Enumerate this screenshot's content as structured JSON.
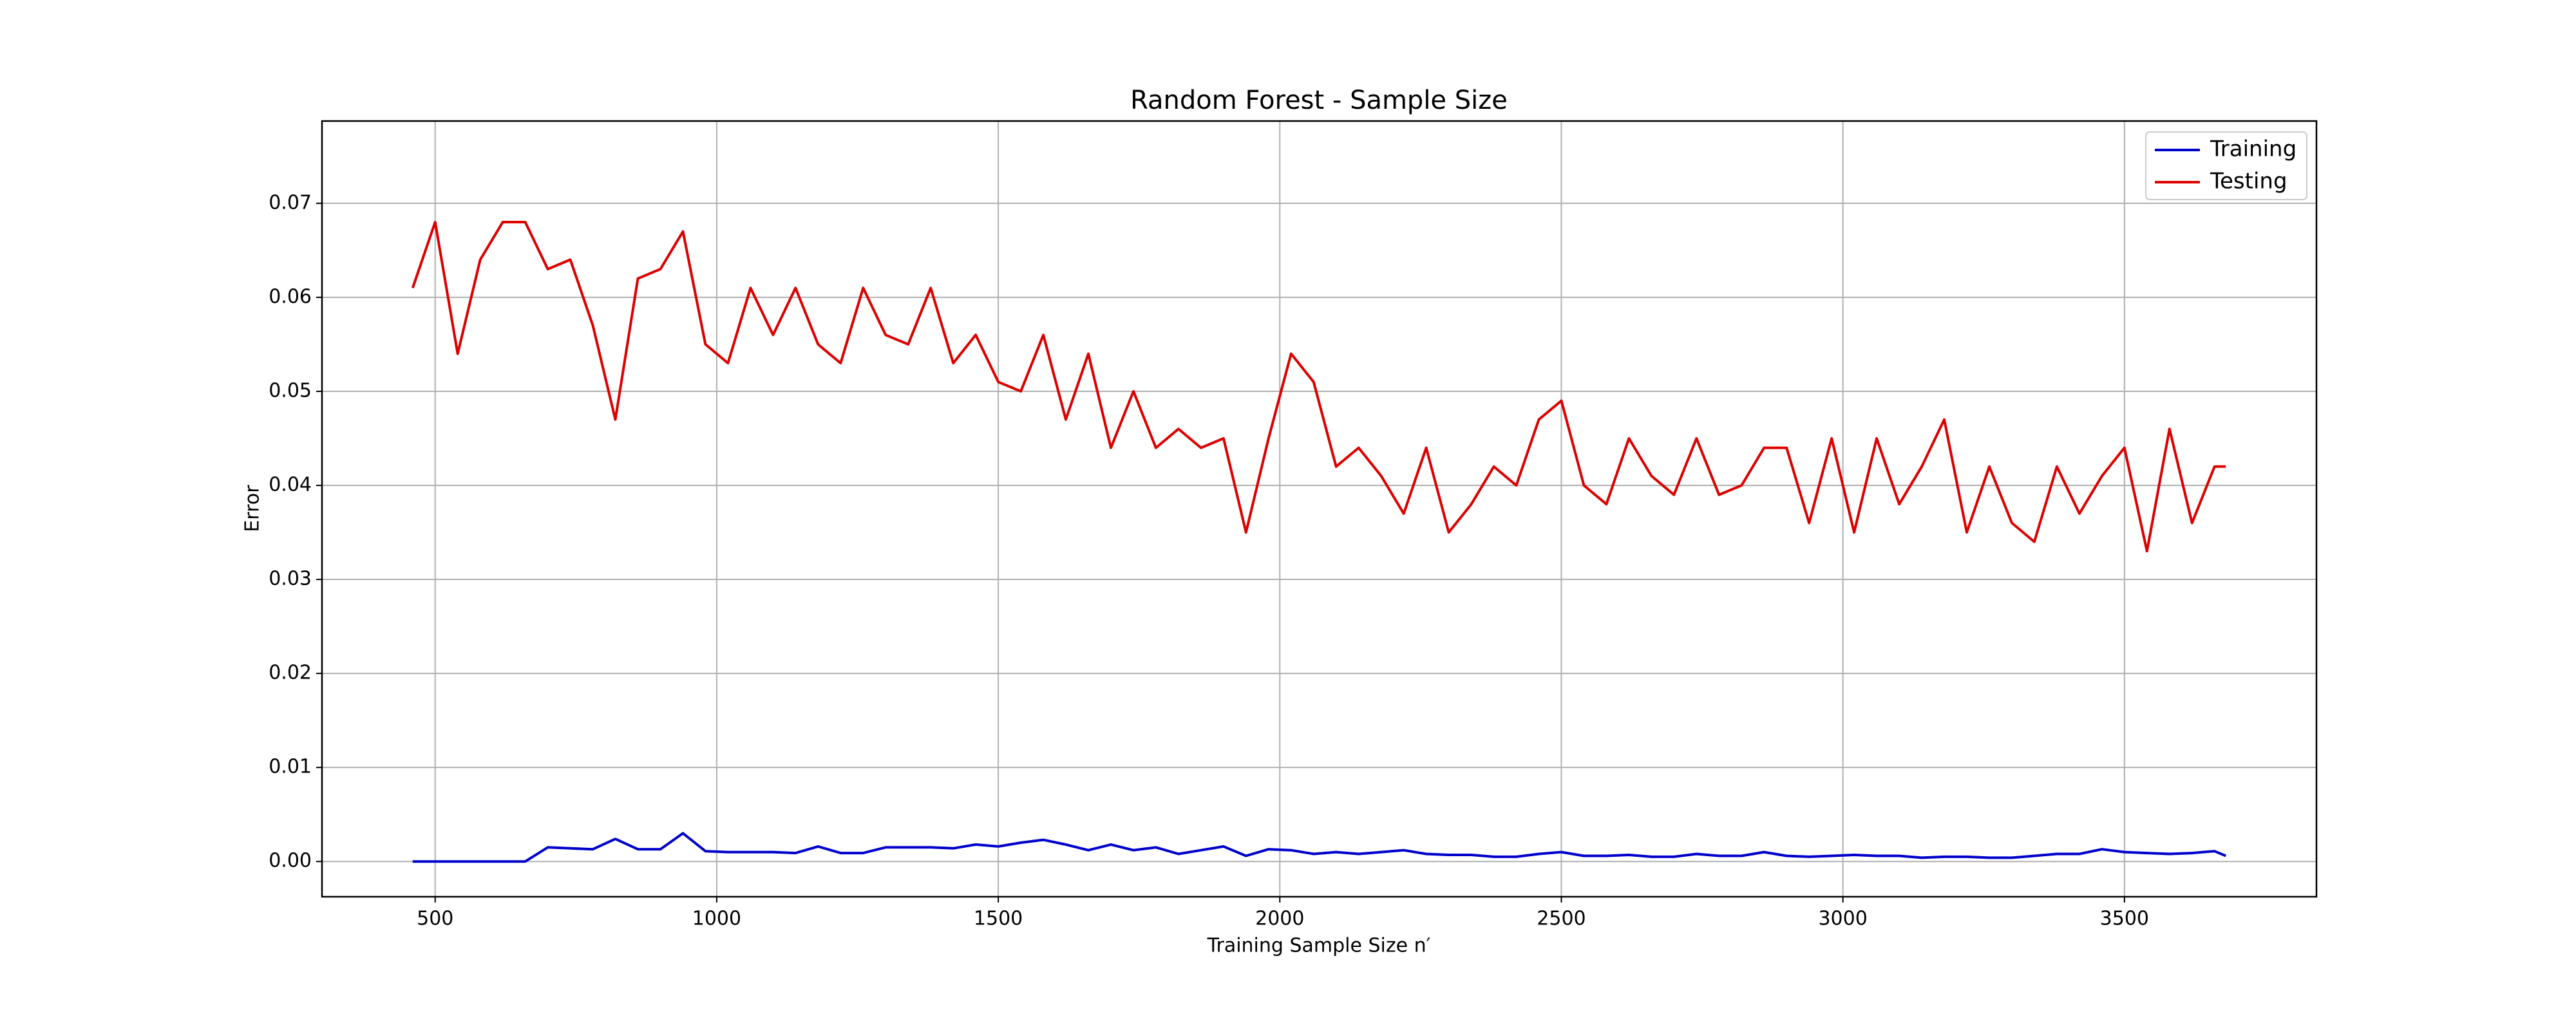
{
  "chart_data": {
    "type": "line",
    "title": "Random Forest - Sample Size",
    "x_label": "Training Sample Size n′",
    "y_label": "Error",
    "x": [
      460,
      500,
      540,
      580,
      620,
      660,
      700,
      740,
      780,
      820,
      860,
      900,
      940,
      980,
      1020,
      1060,
      1100,
      1140,
      1180,
      1220,
      1260,
      1300,
      1340,
      1380,
      1420,
      1460,
      1500,
      1540,
      1580,
      1620,
      1660,
      1700,
      1740,
      1780,
      1820,
      1860,
      1900,
      1940,
      1980,
      2020,
      2060,
      2100,
      2140,
      2180,
      2220,
      2260,
      2300,
      2340,
      2380,
      2420,
      2460,
      2500,
      2540,
      2580,
      2620,
      2660,
      2700,
      2740,
      2780,
      2820,
      2860,
      2900,
      2940,
      2980,
      3020,
      3060,
      3100,
      3140,
      3180,
      3220,
      3260,
      3300,
      3340,
      3380,
      3420,
      3460,
      3500,
      3540,
      3580,
      3620,
      3660,
      3680
    ],
    "series": [
      {
        "name": "Training",
        "color": "#0000cc",
        "values": [
          0,
          0,
          0,
          0,
          0,
          0,
          0.0015,
          0.0014,
          0.0013,
          0.0024,
          0.0013,
          0.0013,
          0.003,
          0.0011,
          0.001,
          0.001,
          0.001,
          0.0009,
          0.0016,
          0.0009,
          0.0009,
          0.0015,
          0.0015,
          0.0015,
          0.0014,
          0.0018,
          0.0016,
          0.002,
          0.0023,
          0.0018,
          0.0012,
          0.0018,
          0.0012,
          0.0015,
          0.0008,
          0.0012,
          0.0016,
          0.0006,
          0.0013,
          0.0012,
          0.0008,
          0.001,
          0.0008,
          0.001,
          0.0012,
          0.0008,
          0.0007,
          0.0007,
          0.0005,
          0.0005,
          0.0008,
          0.001,
          0.0006,
          0.0006,
          0.0007,
          0.0005,
          0.0005,
          0.0008,
          0.0006,
          0.0006,
          0.001,
          0.0006,
          0.0005,
          0.0006,
          0.0007,
          0.0006,
          0.0006,
          0.0004,
          0.0005,
          0.0005,
          0.0004,
          0.0004,
          0.0006,
          0.0008,
          0.0008,
          0.0013,
          0.001,
          0.0009,
          0.0008,
          0.0009,
          0.0011,
          0.0006
        ]
      },
      {
        "name": "Testing",
        "color": "#dd0000",
        "values": [
          0.061,
          0.068,
          0.054,
          0.064,
          0.068,
          0.068,
          0.063,
          0.064,
          0.057,
          0.047,
          0.062,
          0.063,
          0.067,
          0.055,
          0.053,
          0.061,
          0.056,
          0.061,
          0.055,
          0.053,
          0.061,
          0.056,
          0.055,
          0.061,
          0.053,
          0.056,
          0.051,
          0.05,
          0.056,
          0.047,
          0.054,
          0.044,
          0.05,
          0.044,
          0.046,
          0.044,
          0.045,
          0.035,
          0.045,
          0.054,
          0.051,
          0.042,
          0.044,
          0.041,
          0.037,
          0.044,
          0.035,
          0.038,
          0.042,
          0.04,
          0.047,
          0.049,
          0.04,
          0.038,
          0.045,
          0.041,
          0.039,
          0.045,
          0.039,
          0.04,
          0.044,
          0.044,
          0.036,
          0.045,
          0.035,
          0.045,
          0.038,
          0.042,
          0.047,
          0.035,
          0.042,
          0.036,
          0.034,
          0.042,
          0.037,
          0.041,
          0.044,
          0.033,
          0.046,
          0.036,
          0.042,
          0.042
        ]
      }
    ],
    "xlim": [
      299,
      3841
    ],
    "ylim": [
      -0.00375,
      0.07875
    ],
    "xticks": [
      500,
      1000,
      1500,
      2000,
      2500,
      3000,
      3500
    ],
    "yticks": [
      {
        "value": 0,
        "label": "0.00"
      },
      {
        "value": 0.01,
        "label": "0.01"
      },
      {
        "value": 0.02,
        "label": "0.02"
      },
      {
        "value": 0.03,
        "label": "0.03"
      },
      {
        "value": 0.04,
        "label": "0.04"
      },
      {
        "value": 0.05,
        "label": "0.05"
      },
      {
        "value": 0.06,
        "label": "0.06"
      },
      {
        "value": 0.07,
        "label": "0.07"
      }
    ],
    "grid": true,
    "legend": "upper-right"
  }
}
